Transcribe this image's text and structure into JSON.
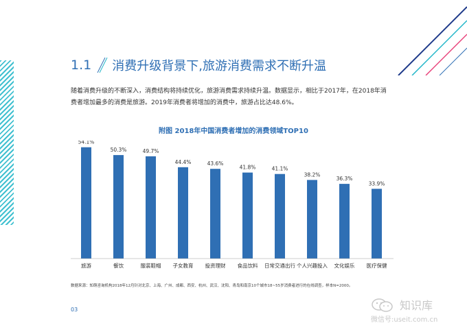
{
  "section": {
    "number": "1.1",
    "title": "消费升级背景下,旅游消费需求不断升温"
  },
  "paragraph": "随着消费升级的不断深入，消费结构将持续优化，旅游消费需求持续升温。数据显示，相比于2017年，在2018年消费者增加最多的消费是旅游。2019年消费者将增加的消费中，旅游占比达48.6%。",
  "chart_title": "附图  2018年中国消费者增加的消费领域TOP10",
  "chart_data": {
    "type": "bar",
    "categories": [
      "旅游",
      "餐饮",
      "服装鞋帽",
      "子女教育",
      "投资理财",
      "食品饮料",
      "日常交通出行",
      "个人兴趣投入",
      "文化娱乐",
      "医疗保健"
    ],
    "values": [
      54.1,
      50.3,
      49.7,
      44.4,
      43.6,
      41.8,
      41.1,
      38.2,
      36.3,
      33.9
    ],
    "value_labels": [
      "54.1%",
      "50.3%",
      "49.7%",
      "44.4%",
      "43.6%",
      "41.8%",
      "41.1%",
      "38.2%",
      "36.3%",
      "33.9%"
    ],
    "ylim": [
      0,
      60
    ],
    "grid": false,
    "bar_color": "#2f6fb4"
  },
  "source": "数据来源：知萌咨询机构2018年12月针对北京、上海、广州、成都、西安、杭州、武汉、沈阳、青岛和南京10个城市18~55岁消费者进行的在线调查，样本N=2000。",
  "page_number": "03",
  "watermark": {
    "name": "知识库",
    "id": "微信号:useit.com.cn"
  },
  "colors": {
    "accent": "#2f6fb4",
    "stripe": "#1fb5c8"
  }
}
